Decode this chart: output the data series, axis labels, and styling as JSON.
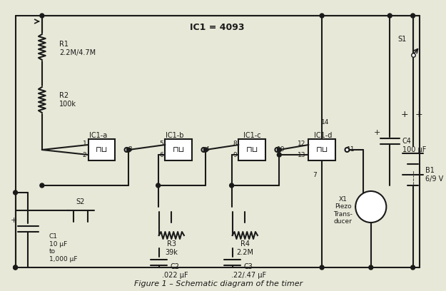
{
  "title": "Figure 1 – Schematic diagram of the timer",
  "bg_color": "#e8e8d8",
  "line_color": "#1a1a1a",
  "text_color": "#1a1a1a",
  "ic1_label": "IC1 = 4093",
  "components": {
    "R1": "R1\n2.2M/4.7M",
    "R2": "R2\n100k",
    "R3": "R3\n39k",
    "R4": "R4\n2.2M",
    "C1": "C1\n10 μF\nto\n1,000 μF",
    "C2": "C2\n.022 μF",
    "C3": "C3\n.22/.47 μF",
    "C4": "C4\n100 μF",
    "B1": "B1\n6/9 V",
    "S1": "S1",
    "S2": "S2",
    "X1": "X1\nPiezo\nTrans-\nducer",
    "IC1a": "IC1-a",
    "IC1b": "IC1-b",
    "IC1c": "IC1-c",
    "IC1d": "IC1-d"
  }
}
